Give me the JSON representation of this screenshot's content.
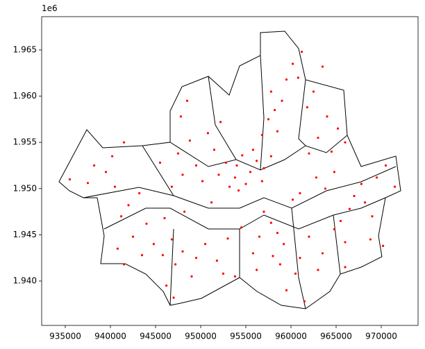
{
  "chart_data": {
    "type": "scatter",
    "color": "#ff0000",
    "y_offset_label": "1e6",
    "xlim": [
      932385,
      974077
    ],
    "ylim": [
      1935195,
      1968604
    ],
    "xticks": [
      935000,
      940000,
      945000,
      950000,
      955000,
      960000,
      965000,
      970000
    ],
    "yticks": [
      {
        "value": 1940000,
        "label": "1.940"
      },
      {
        "value": 1945000,
        "label": "1.945"
      },
      {
        "value": 1950000,
        "label": "1.950"
      },
      {
        "value": 1955000,
        "label": "1.955"
      },
      {
        "value": 1960000,
        "label": "1.960"
      },
      {
        "value": 1965000,
        "label": "1.965"
      }
    ],
    "x": [
      954000,
      955500,
      956200,
      953800,
      955000,
      957000,
      952800,
      954600,
      956800,
      953200,
      955800,
      952000,
      957800,
      954200,
      957500,
      958200,
      957800,
      959000,
      958500,
      956800,
      959500,
      960200,
      960800,
      961200,
      962500,
      963500,
      961800,
      963000,
      964500,
      965200,
      962000,
      964000,
      966000,
      962800,
      963800,
      961000,
      960200,
      964800,
      967000,
      968200,
      967800,
      969500,
      966500,
      969000,
      971500,
      970500,
      965500,
      968800,
      970200,
      966000,
      962000,
      963500,
      964800,
      961000,
      963000,
      966000,
      960500,
      958800,
      959500,
      961500,
      957800,
      958500,
      957000,
      959200,
      956500,
      955800,
      958000,
      954500,
      953000,
      956200,
      953800,
      948000,
      949500,
      947500,
      950200,
      946800,
      948800,
      947800,
      948500,
      950800,
      952200,
      951500,
      945500,
      951200,
      948000,
      949500,
      946800,
      950500,
      947200,
      945800,
      951800,
      946200,
      947000,
      949000,
      952500,
      946000,
      948200,
      942000,
      941200,
      943200,
      940500,
      944000,
      942500,
      940800,
      943500,
      941500,
      944800,
      939500,
      938200,
      937500,
      935500,
      940200,
      941500
    ],
    "y": [
      1952500,
      1951800,
      1953000,
      1951200,
      1950500,
      1952200,
      1952800,
      1953600,
      1950800,
      1950200,
      1954200,
      1951500,
      1953500,
      1949800,
      1957500,
      1958500,
      1960500,
      1959500,
      1956200,
      1955800,
      1961800,
      1963500,
      1962000,
      1964800,
      1960500,
      1963200,
      1958800,
      1955500,
      1954000,
      1956500,
      1953800,
      1957800,
      1955000,
      1951200,
      1950000,
      1949500,
      1948800,
      1951800,
      1949200,
      1948500,
      1950500,
      1951200,
      1947800,
      1947000,
      1950200,
      1952500,
      1946500,
      1944500,
      1943800,
      1944200,
      1944800,
      1943000,
      1945600,
      1942500,
      1941200,
      1941500,
      1940800,
      1941800,
      1939000,
      1937800,
      1946300,
      1945200,
      1947500,
      1944000,
      1944800,
      1943000,
      1942700,
      1945800,
      1944600,
      1941200,
      1940500,
      1951500,
      1952500,
      1953800,
      1950800,
      1950200,
      1955200,
      1957800,
      1959500,
      1956000,
      1957200,
      1954200,
      1952800,
      1948500,
      1943200,
      1942500,
      1944500,
      1944000,
      1941800,
      1942800,
      1942200,
      1939500,
      1938200,
      1940500,
      1940800,
      1946800,
      1947500,
      1948200,
      1947000,
      1949500,
      1950200,
      1946200,
      1944800,
      1943500,
      1942800,
      1941800,
      1944000,
      1951800,
      1952500,
      1950600,
      1951000,
      1953500,
      1955000
    ]
  }
}
